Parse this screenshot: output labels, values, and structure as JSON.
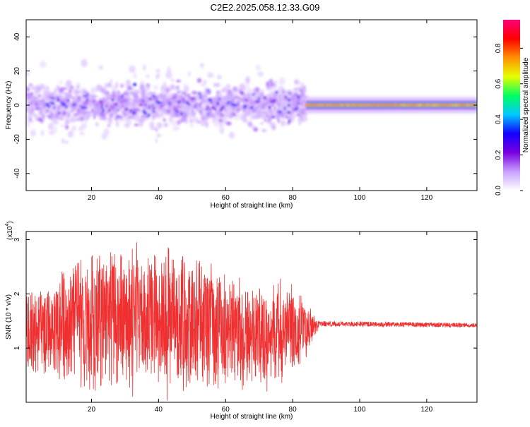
{
  "title": "C2E2.2025.058.12.33.G09",
  "chart_data": [
    {
      "type": "heatmap",
      "xlabel": "Height of straight line (km)",
      "ylabel": "Frequency (Hz)",
      "xlim": [
        0.5,
        135
      ],
      "ylim": [
        -50,
        50
      ],
      "xticks": [
        20,
        40,
        60,
        80,
        100,
        120
      ],
      "xtick_labels": [
        "20",
        "40",
        "60",
        "80",
        "100",
        "120"
      ],
      "yticks": [
        -40,
        -20,
        0,
        20,
        40
      ],
      "ytick_labels": [
        "-40",
        "-20",
        "0",
        "20",
        "40"
      ],
      "colorbar": {
        "label": "Normalized spectral amplitude",
        "range": [
          0,
          0.96
        ],
        "ticks": [
          0.0,
          0.2,
          0.4,
          0.6,
          0.8
        ],
        "tick_labels": [
          "0.0",
          "0.2",
          "0.4",
          "0.6",
          "0.8"
        ],
        "colormap": [
          "#ffffff",
          "#c8a0ff",
          "#7a00e0",
          "#1400ff",
          "#00c8ff",
          "#00ff60",
          "#e6ff00",
          "#ff9000",
          "#ff0000",
          "#ff0078"
        ]
      },
      "regions": [
        {
          "x": [
            0.5,
            84
          ],
          "freq_center": 0,
          "freq_spread": [
            -15,
            15
          ],
          "outer_spread": [
            -25,
            25
          ],
          "amplitude_range": [
            0.05,
            0.35
          ]
        },
        {
          "x": [
            84,
            135
          ],
          "freq_center": 0,
          "freq_spread": [
            -2,
            2
          ],
          "outer_spread": [
            -5,
            5
          ],
          "amplitude_range": [
            0.4,
            0.96
          ]
        }
      ]
    },
    {
      "type": "line",
      "xlabel": "Height of straight line (km)",
      "ylabel": "SNR (10 * v/v)",
      "multiplier_base": "(x10",
      "multiplier_exp": "4",
      "multiplier_close": ")",
      "xlim": [
        0.5,
        135
      ],
      "ylim": [
        0,
        3.15
      ],
      "xticks": [
        20,
        40,
        60,
        80,
        100,
        120
      ],
      "xtick_labels": [
        "20",
        "40",
        "60",
        "80",
        "100",
        "120"
      ],
      "yticks": [
        1,
        2,
        3
      ],
      "ytick_labels": [
        "1",
        "2",
        "3"
      ],
      "series": [
        {
          "color": "#f03030",
          "envelope": [
            {
              "x": 0.5,
              "low": 0.45,
              "high": 2.1
            },
            {
              "x": 8,
              "low": 0.5,
              "high": 2.3
            },
            {
              "x": 15,
              "low": 0.1,
              "high": 2.8
            },
            {
              "x": 26,
              "low": 0.05,
              "high": 3.0
            },
            {
              "x": 44,
              "low": 0.0,
              "high": 3.1
            },
            {
              "x": 60,
              "low": 0.1,
              "high": 2.5
            },
            {
              "x": 80,
              "low": 0.2,
              "high": 2.3
            },
            {
              "x": 88,
              "low": 1.4,
              "high": 1.5
            },
            {
              "x": 135,
              "low": 1.38,
              "high": 1.46
            }
          ]
        }
      ]
    }
  ]
}
